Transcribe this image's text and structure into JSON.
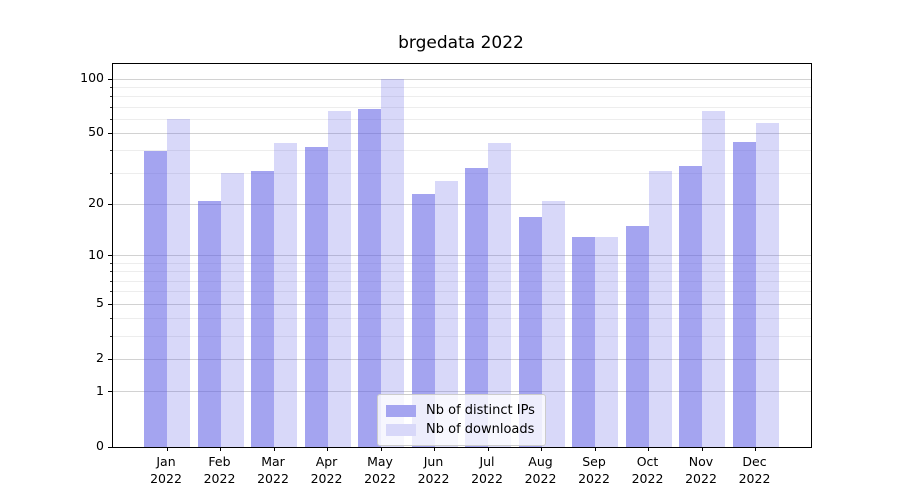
{
  "title": "brgedata 2022",
  "chart_data": {
    "type": "bar",
    "title": "brgedata 2022",
    "categories": [
      "Jan",
      "Feb",
      "Mar",
      "Apr",
      "May",
      "Jun",
      "Jul",
      "Aug",
      "Sep",
      "Oct",
      "Nov",
      "Dec"
    ],
    "year_label": "2022",
    "series": [
      {
        "name": "Nb of distinct IPs",
        "color": "rgba(92,92,229,0.56)",
        "color_on_white": "#a4a4f0",
        "values": [
          40,
          21,
          31,
          42,
          68,
          23,
          32,
          17,
          13,
          15,
          33,
          45
        ]
      },
      {
        "name": "Nb of downloads",
        "color": "rgba(92,92,229,0.24)",
        "color_on_white": "#d8d8f9",
        "values": [
          60,
          30,
          44,
          67,
          100,
          27,
          44,
          21,
          13,
          31,
          67,
          57
        ]
      }
    ],
    "xlabel": "",
    "ylabel": "",
    "yaxis": {
      "scale": "log10(1+x)",
      "ticks": [
        0,
        1,
        2,
        5,
        10,
        20,
        50,
        100
      ],
      "minor_ticks": [
        3,
        4,
        6,
        7,
        8,
        9,
        30,
        40,
        60,
        70,
        80,
        90
      ],
      "ylim_top_value": 100
    },
    "grid": true,
    "legend_position": "lower center"
  }
}
